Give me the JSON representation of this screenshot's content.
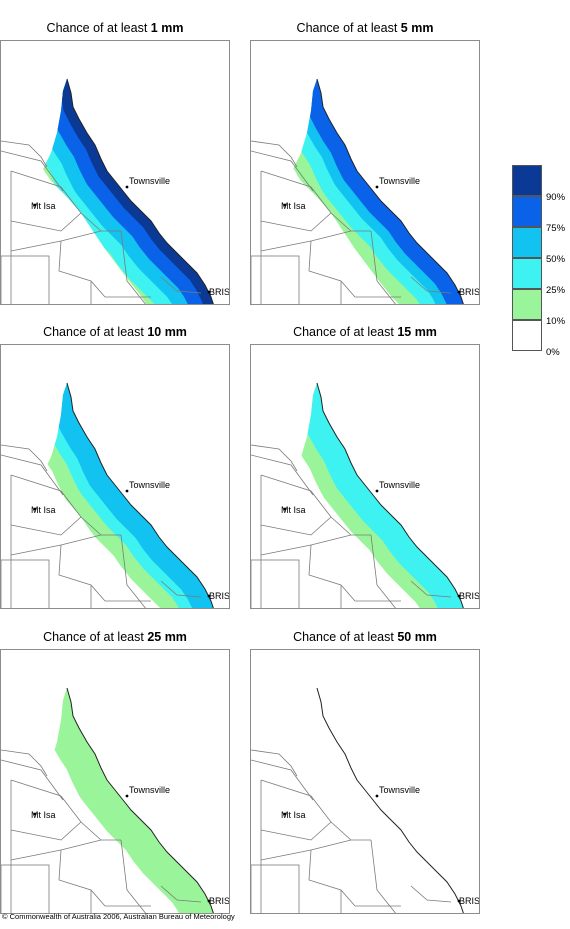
{
  "panels": [
    {
      "prefix": "Chance of at least ",
      "amount": "1 mm",
      "level": 5
    },
    {
      "prefix": "Chance of at least ",
      "amount": "5 mm",
      "level": 4
    },
    {
      "prefix": "Chance of at least ",
      "amount": "10 mm",
      "level": 3
    },
    {
      "prefix": "Chance of at least ",
      "amount": "15 mm",
      "level": 2
    },
    {
      "prefix": "Chance of at least ",
      "amount": "25 mm",
      "level": 1
    },
    {
      "prefix": "Chance of at least ",
      "amount": "50 mm",
      "level": 0
    }
  ],
  "places": {
    "townsville": "Townsville",
    "mt_isa": "Mt Isa",
    "brisbane": "BRIS"
  },
  "legend": {
    "swatches": [
      {
        "color": "#0b3a96",
        "range": "90–100%"
      },
      {
        "color": "#0a62e8",
        "range": "75–90%"
      },
      {
        "color": "#12c2f0",
        "range": "50–75%"
      },
      {
        "color": "#3ef2f2",
        "range": "25–50%"
      },
      {
        "color": "#9af59a",
        "range": "10–25%"
      },
      {
        "color": "#ffffff",
        "range": "0–10%"
      }
    ],
    "ticks": [
      "90%",
      "75%",
      "50%",
      "25%",
      "10%",
      "0%"
    ]
  },
  "copyright": "© Commonwealth of Australia 2006, Australian Bureau of Meteorology"
}
